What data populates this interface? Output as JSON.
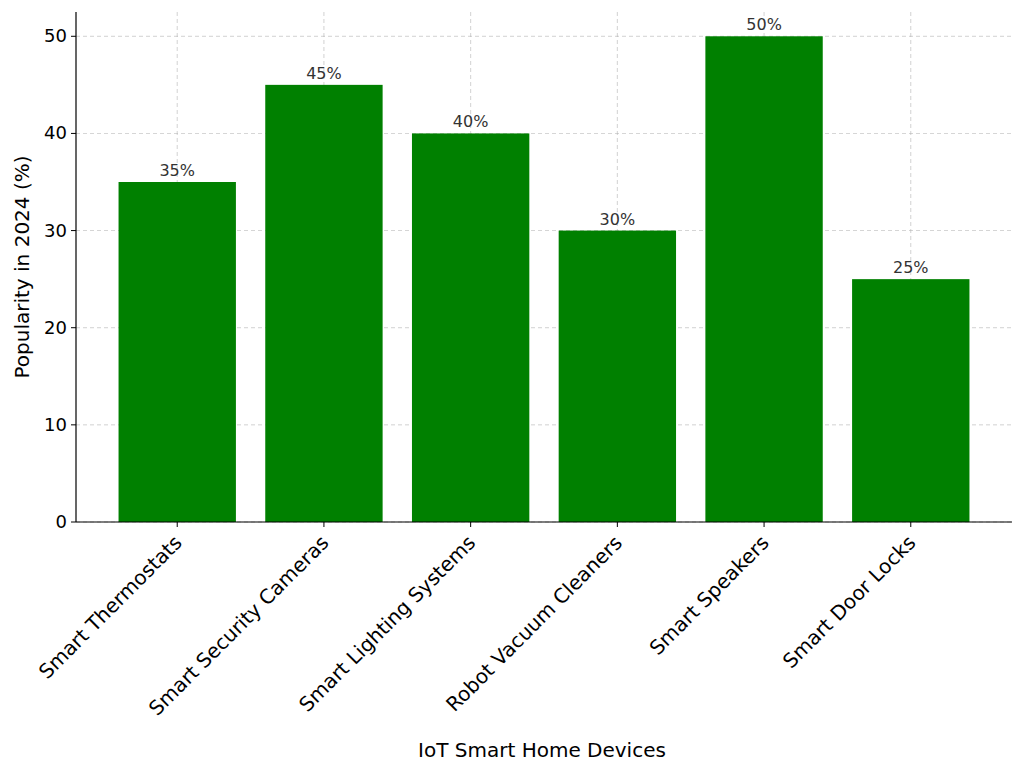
{
  "chart_data": {
    "type": "bar",
    "x_label": "IoT Smart Home Devices",
    "y_label": "Popularity in 2024 (%)",
    "categories": [
      "Smart Thermostats",
      "Smart Security Cameras",
      "Smart Lighting Systems",
      "Robot Vacuum Cleaners",
      "Smart Speakers",
      "Smart Door Locks"
    ],
    "values": [
      35,
      45,
      40,
      30,
      50,
      25
    ],
    "value_labels": [
      "35%",
      "45%",
      "40%",
      "30%",
      "50%",
      "25%"
    ],
    "color": "#008000",
    "ylim": [
      0,
      52.5
    ],
    "yticks": [
      0,
      10,
      20,
      30,
      40,
      50
    ],
    "grid": true,
    "data_labels": true
  }
}
